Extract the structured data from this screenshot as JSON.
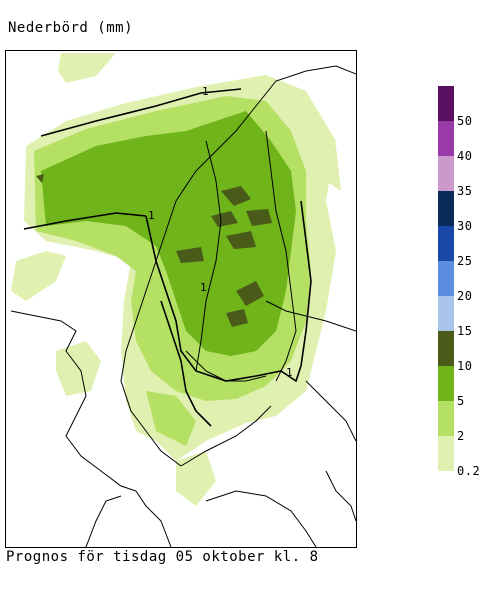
{
  "title": "Nederbörd (mm)",
  "caption": "Prognos för tisdag 05 oktober kl. 8",
  "legend": [
    {
      "label": "0.2",
      "color": "#e0f0b0"
    },
    {
      "label": "2",
      "color": "#b4e064"
    },
    {
      "label": "5",
      "color": "#6eb41a"
    },
    {
      "label": "10",
      "color": "#4a5a18"
    },
    {
      "label": "15",
      "color": "#a8c4e8"
    },
    {
      "label": "20",
      "color": "#5a8ce0"
    },
    {
      "label": "25",
      "color": "#1848a8"
    },
    {
      "label": "30",
      "color": "#0a2a5a"
    },
    {
      "label": "35",
      "color": "#cc99cc"
    },
    {
      "label": "40",
      "color": "#9a3aa8"
    },
    {
      "label": "50",
      "color": "#5a1060"
    }
  ],
  "legend_top_color": "#5a1060",
  "isobar_labels": [
    {
      "text": "1"
    },
    {
      "text": "1"
    },
    {
      "text": "1"
    },
    {
      "text": "1"
    }
  ]
}
